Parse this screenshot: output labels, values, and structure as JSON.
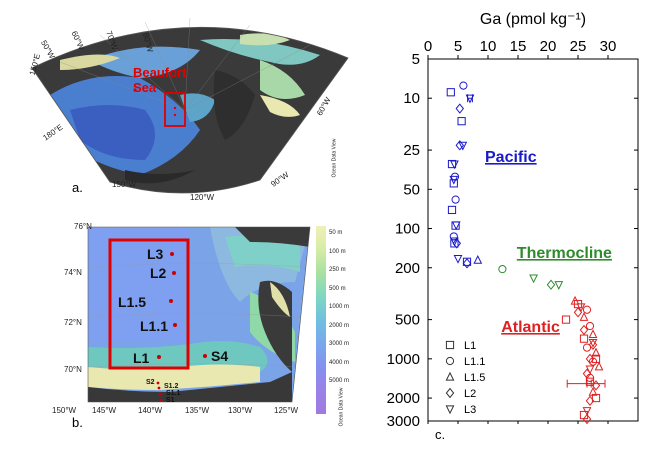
{
  "panel_a": {
    "label": "a.",
    "region_label": "Beaufort Sea",
    "lon_labels": [
      "50°W",
      "60°W",
      "70°W",
      "80°W",
      "150°E",
      "180°E",
      "150°W",
      "120°W",
      "90°W",
      "60°W"
    ],
    "credit": "Ocean Data View"
  },
  "panel_b": {
    "label": "b.",
    "lat_labels": [
      "76°N",
      "74°N",
      "72°N",
      "70°N"
    ],
    "lon_labels": [
      "150°W",
      "145°W",
      "140°W",
      "135°W",
      "130°W",
      "125°W"
    ],
    "stations": [
      "L3",
      "L2",
      "L1.5",
      "L1.1",
      "L1",
      "S4"
    ],
    "small_stations": [
      "S2",
      "S1.2",
      "S1.1",
      "S1"
    ],
    "depth_legend": [
      "50 m",
      "100 m",
      "250 m",
      "500 m",
      "1000 m",
      "2000 m",
      "3000 m",
      "4000 m",
      "5000 m"
    ],
    "credit": "Ocean Data View"
  },
  "panel_c": {
    "label": "c.",
    "region_labels": {
      "pacific": "Pacific",
      "thermocline": "Thermocline",
      "atlantic": "Atlantic"
    }
  },
  "colors": {
    "pacific": "#1a1acc",
    "thermocline": "#2e8b2e",
    "atlantic": "#e02020",
    "box": "#e00000"
  },
  "chart_data": {
    "type": "scatter",
    "xlabel": "Ga (pmol kg⁻¹)",
    "ylabel": "",
    "xlim": [
      0,
      35
    ],
    "ylim": [
      5,
      3000
    ],
    "y_scale": "log",
    "y_inverted": true,
    "x_axis_position": "top",
    "x_ticks": [
      0,
      5,
      10,
      15,
      20,
      25,
      30
    ],
    "y_ticks": [
      5,
      10,
      25,
      50,
      100,
      200,
      500,
      1000,
      2000,
      3000
    ],
    "legend_position": "bottom-left",
    "series": [
      {
        "name": "L1",
        "marker": "square",
        "points": [
          [
            3.8,
            9
          ],
          [
            5.6,
            15
          ],
          [
            4.0,
            32
          ],
          [
            4.3,
            45
          ],
          [
            4.0,
            72
          ],
          [
            4.6,
            95
          ],
          [
            4.4,
            130
          ],
          [
            6.5,
            180
          ],
          [
            25,
            380
          ],
          [
            23,
            500
          ],
          [
            26,
            700
          ],
          [
            28,
            1000
          ],
          [
            27,
            1500
          ],
          [
            28,
            2000
          ],
          [
            26,
            2700
          ]
        ]
      },
      {
        "name": "L1.1",
        "marker": "circle",
        "points": [
          [
            5.9,
            8
          ],
          [
            4.5,
            40
          ],
          [
            4.6,
            60
          ],
          [
            4.3,
            115
          ],
          [
            12.4,
            205
          ],
          [
            26.5,
            420
          ],
          [
            27,
            560
          ],
          [
            26.5,
            820
          ],
          [
            27.5,
            1050
          ],
          [
            27,
            1400
          ]
        ]
      },
      {
        "name": "L1.5",
        "marker": "triangle",
        "points": [
          [
            8.3,
            175
          ],
          [
            24.5,
            360
          ],
          [
            26,
            480
          ],
          [
            27.5,
            650
          ],
          [
            28,
            900
          ],
          [
            28.5,
            1150
          ],
          [
            27.5,
            1800
          ]
        ]
      },
      {
        "name": "L2",
        "marker": "diamond",
        "points": [
          [
            5.3,
            12
          ],
          [
            5.3,
            23
          ],
          [
            4.8,
            130
          ],
          [
            6.5,
            185
          ],
          [
            20.5,
            270
          ],
          [
            25,
            440
          ],
          [
            26,
            600
          ],
          [
            27.5,
            780
          ],
          [
            27,
            1000
          ],
          [
            26.5,
            1300
          ],
          [
            28,
            1600
          ],
          [
            27,
            2100
          ],
          [
            26.5,
            2900
          ]
        ]
      },
      {
        "name": "L3",
        "marker": "triangle-down",
        "points": [
          [
            7.0,
            10
          ],
          [
            5.8,
            23
          ],
          [
            4.4,
            32
          ],
          [
            4.3,
            42
          ],
          [
            4.7,
            94
          ],
          [
            4.4,
            125
          ],
          [
            5.0,
            170
          ],
          [
            17.6,
            240
          ],
          [
            21.8,
            270
          ],
          [
            25.5,
            400
          ],
          [
            27.5,
            750
          ],
          [
            27,
            1200
          ],
          [
            26.5,
            2500
          ]
        ]
      }
    ],
    "error_bars": [
      {
        "x": 25.2,
        "y": 1550,
        "xerr": 2.0
      },
      {
        "x": 28.0,
        "y": 1550,
        "xerr": 1.5
      },
      {
        "x": 7.0,
        "y": 10,
        "xerr": 0.4
      }
    ]
  }
}
